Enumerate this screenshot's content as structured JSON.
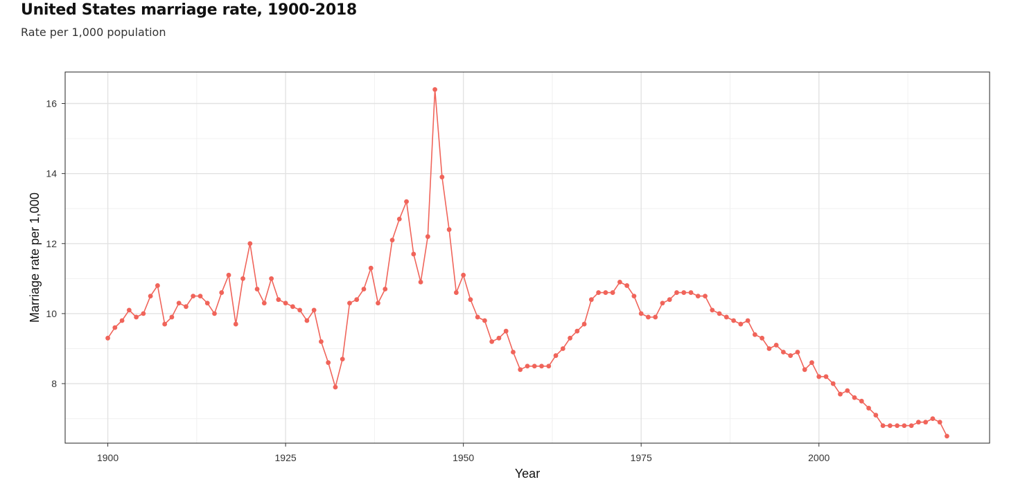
{
  "header": {
    "title": "United States marriage rate, 1900-2018",
    "subtitle": "Rate per 1,000 population"
  },
  "colors": {
    "series": "#f0645a",
    "grid_major": "#e2e2e2",
    "grid_minor": "#f0f0f0",
    "panel_border": "#222222"
  },
  "chart_data": {
    "type": "line",
    "title": "United States marriage rate, 1900-2018",
    "subtitle": "Rate per 1,000 population",
    "xlabel": "Year",
    "ylabel": "Marriage rate per 1,000",
    "xlim": [
      1894,
      2024
    ],
    "ylim": [
      6.3,
      16.9
    ],
    "x_ticks": [
      1900,
      1925,
      1950,
      1975,
      2000
    ],
    "y_ticks": [
      8,
      10,
      12,
      14,
      16
    ],
    "grid": true,
    "legend": "none",
    "markers": true,
    "series": [
      {
        "x": [
          1900,
          1901,
          1902,
          1903,
          1904,
          1905,
          1906,
          1907,
          1908,
          1909,
          1910,
          1911,
          1912,
          1913,
          1914,
          1915,
          1916,
          1917,
          1918,
          1919,
          1920,
          1921,
          1922,
          1923,
          1924,
          1925,
          1926,
          1927,
          1928,
          1929,
          1930,
          1931,
          1932,
          1933,
          1934,
          1935,
          1936,
          1937,
          1938,
          1939,
          1940,
          1941,
          1942,
          1943,
          1944,
          1945,
          1946,
          1947,
          1948,
          1949,
          1950,
          1951,
          1952,
          1953,
          1954,
          1955,
          1956,
          1957,
          1958,
          1959,
          1960,
          1961,
          1962,
          1963,
          1964,
          1965,
          1966,
          1967,
          1968,
          1969,
          1970,
          1971,
          1972,
          1973,
          1974,
          1975,
          1976,
          1977,
          1978,
          1979,
          1980,
          1981,
          1982,
          1983,
          1984,
          1985,
          1986,
          1987,
          1988,
          1989,
          1990,
          1991,
          1992,
          1993,
          1994,
          1995,
          1996,
          1997,
          1998,
          1999,
          2000,
          2001,
          2002,
          2003,
          2004,
          2005,
          2006,
          2007,
          2008,
          2009,
          2010,
          2011,
          2012,
          2013,
          2014,
          2015,
          2016,
          2017,
          2018
        ],
        "y": [
          9.3,
          9.6,
          9.8,
          10.1,
          9.9,
          10.0,
          10.5,
          10.8,
          9.7,
          9.9,
          10.3,
          10.2,
          10.5,
          10.5,
          10.3,
          10.0,
          10.6,
          11.1,
          9.7,
          11.0,
          12.0,
          10.7,
          10.3,
          11.0,
          10.4,
          10.3,
          10.2,
          10.1,
          9.8,
          10.1,
          9.2,
          8.6,
          7.9,
          8.7,
          10.3,
          10.4,
          10.7,
          11.3,
          10.3,
          10.7,
          12.1,
          12.7,
          13.2,
          11.7,
          10.9,
          12.2,
          16.4,
          13.9,
          12.4,
          10.6,
          11.1,
          10.4,
          9.9,
          9.8,
          9.2,
          9.3,
          9.5,
          8.9,
          8.4,
          8.5,
          8.5,
          8.5,
          8.5,
          8.8,
          9.0,
          9.3,
          9.5,
          9.7,
          10.4,
          10.6,
          10.6,
          10.6,
          10.9,
          10.8,
          10.5,
          10.0,
          9.9,
          9.9,
          10.3,
          10.4,
          10.6,
          10.6,
          10.6,
          10.5,
          10.5,
          10.1,
          10.0,
          9.9,
          9.8,
          9.7,
          9.8,
          9.4,
          9.3,
          9.0,
          9.1,
          8.9,
          8.8,
          8.9,
          8.4,
          8.6,
          8.2,
          8.2,
          8.0,
          7.7,
          7.8,
          7.6,
          7.5,
          7.3,
          7.1,
          6.8,
          6.8,
          6.8,
          6.8,
          6.8,
          6.9,
          6.9,
          7.0,
          6.9,
          6.5
        ]
      }
    ]
  }
}
